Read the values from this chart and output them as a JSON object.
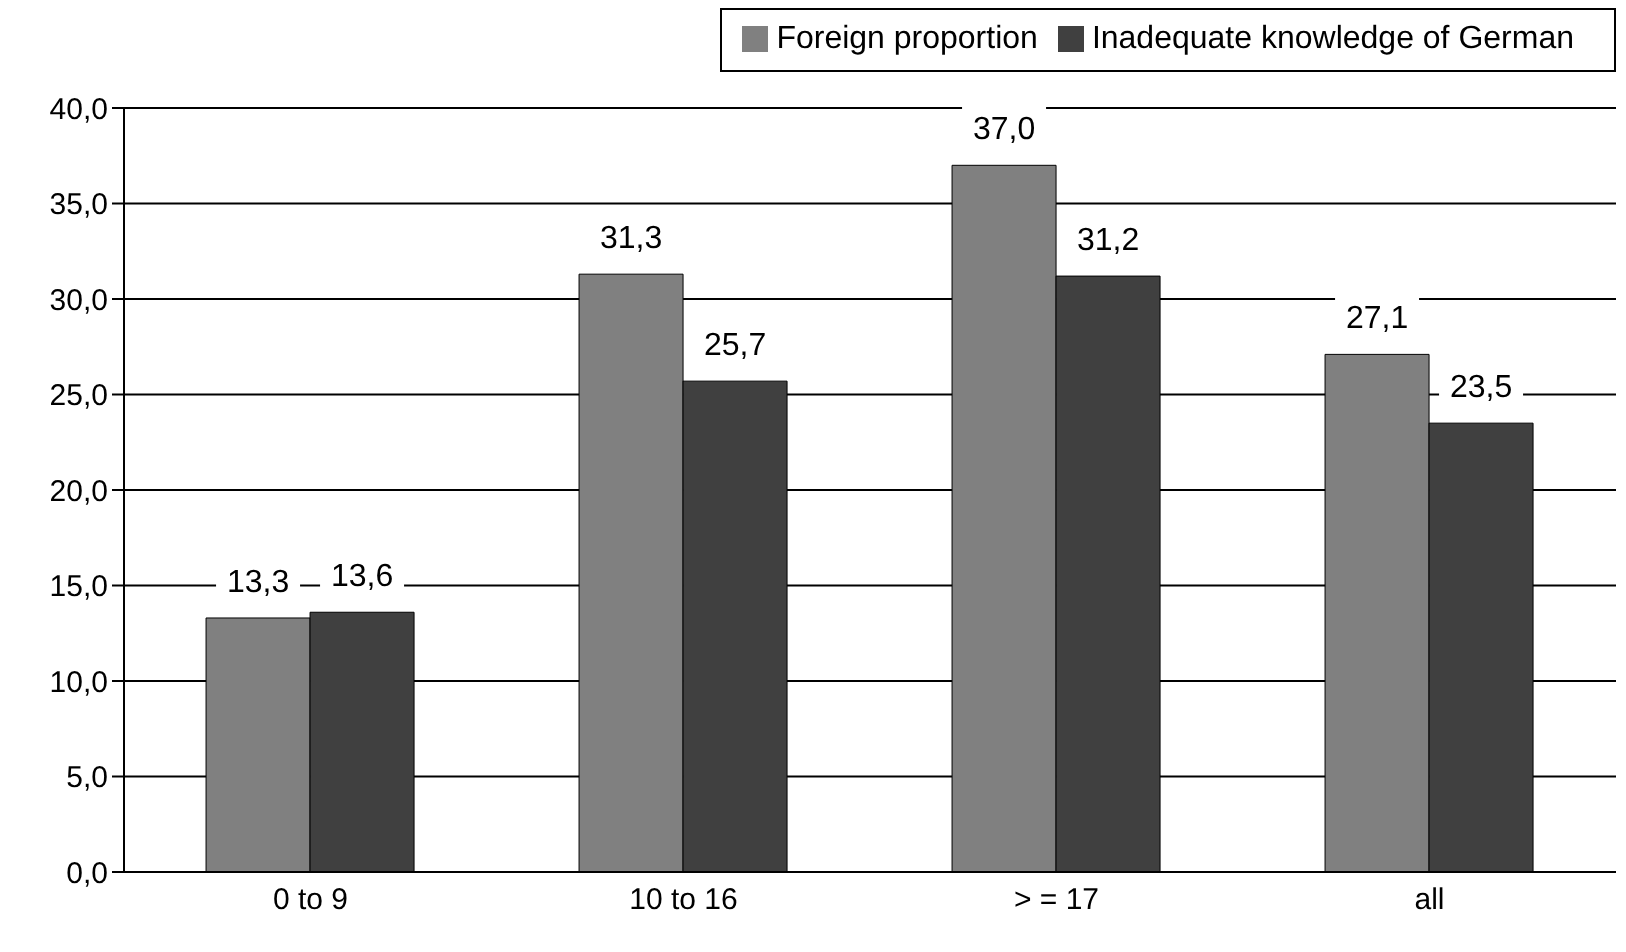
{
  "chart_data": {
    "type": "bar",
    "categories": [
      "0 to 9",
      "10 to 16",
      "> = 17",
      "all"
    ],
    "series": [
      {
        "name": "Foreign proportion",
        "color": "#808080",
        "values": [
          13.3,
          31.3,
          37.0,
          27.1
        ],
        "value_labels": [
          "13,3",
          "31,3",
          "37,0",
          "27,1"
        ]
      },
      {
        "name": "Inadequate knowledge of German",
        "color": "#404040",
        "values": [
          13.6,
          25.7,
          31.2,
          23.5
        ],
        "value_labels": [
          "13,6",
          "25,7",
          "31,2",
          "23,5"
        ]
      }
    ],
    "ylim": [
      0,
      40
    ],
    "yticks": [
      {
        "value": 0,
        "label": "0,0"
      },
      {
        "value": 5,
        "label": "5,0"
      },
      {
        "value": 10,
        "label": "10,0"
      },
      {
        "value": 15,
        "label": "15,0"
      },
      {
        "value": 20,
        "label": "20,0"
      },
      {
        "value": 25,
        "label": "25,0"
      },
      {
        "value": 30,
        "label": "30,0"
      },
      {
        "value": 35,
        "label": "35,0"
      },
      {
        "value": 40,
        "label": "40,0"
      }
    ],
    "grid": "y",
    "legend": "top right"
  }
}
